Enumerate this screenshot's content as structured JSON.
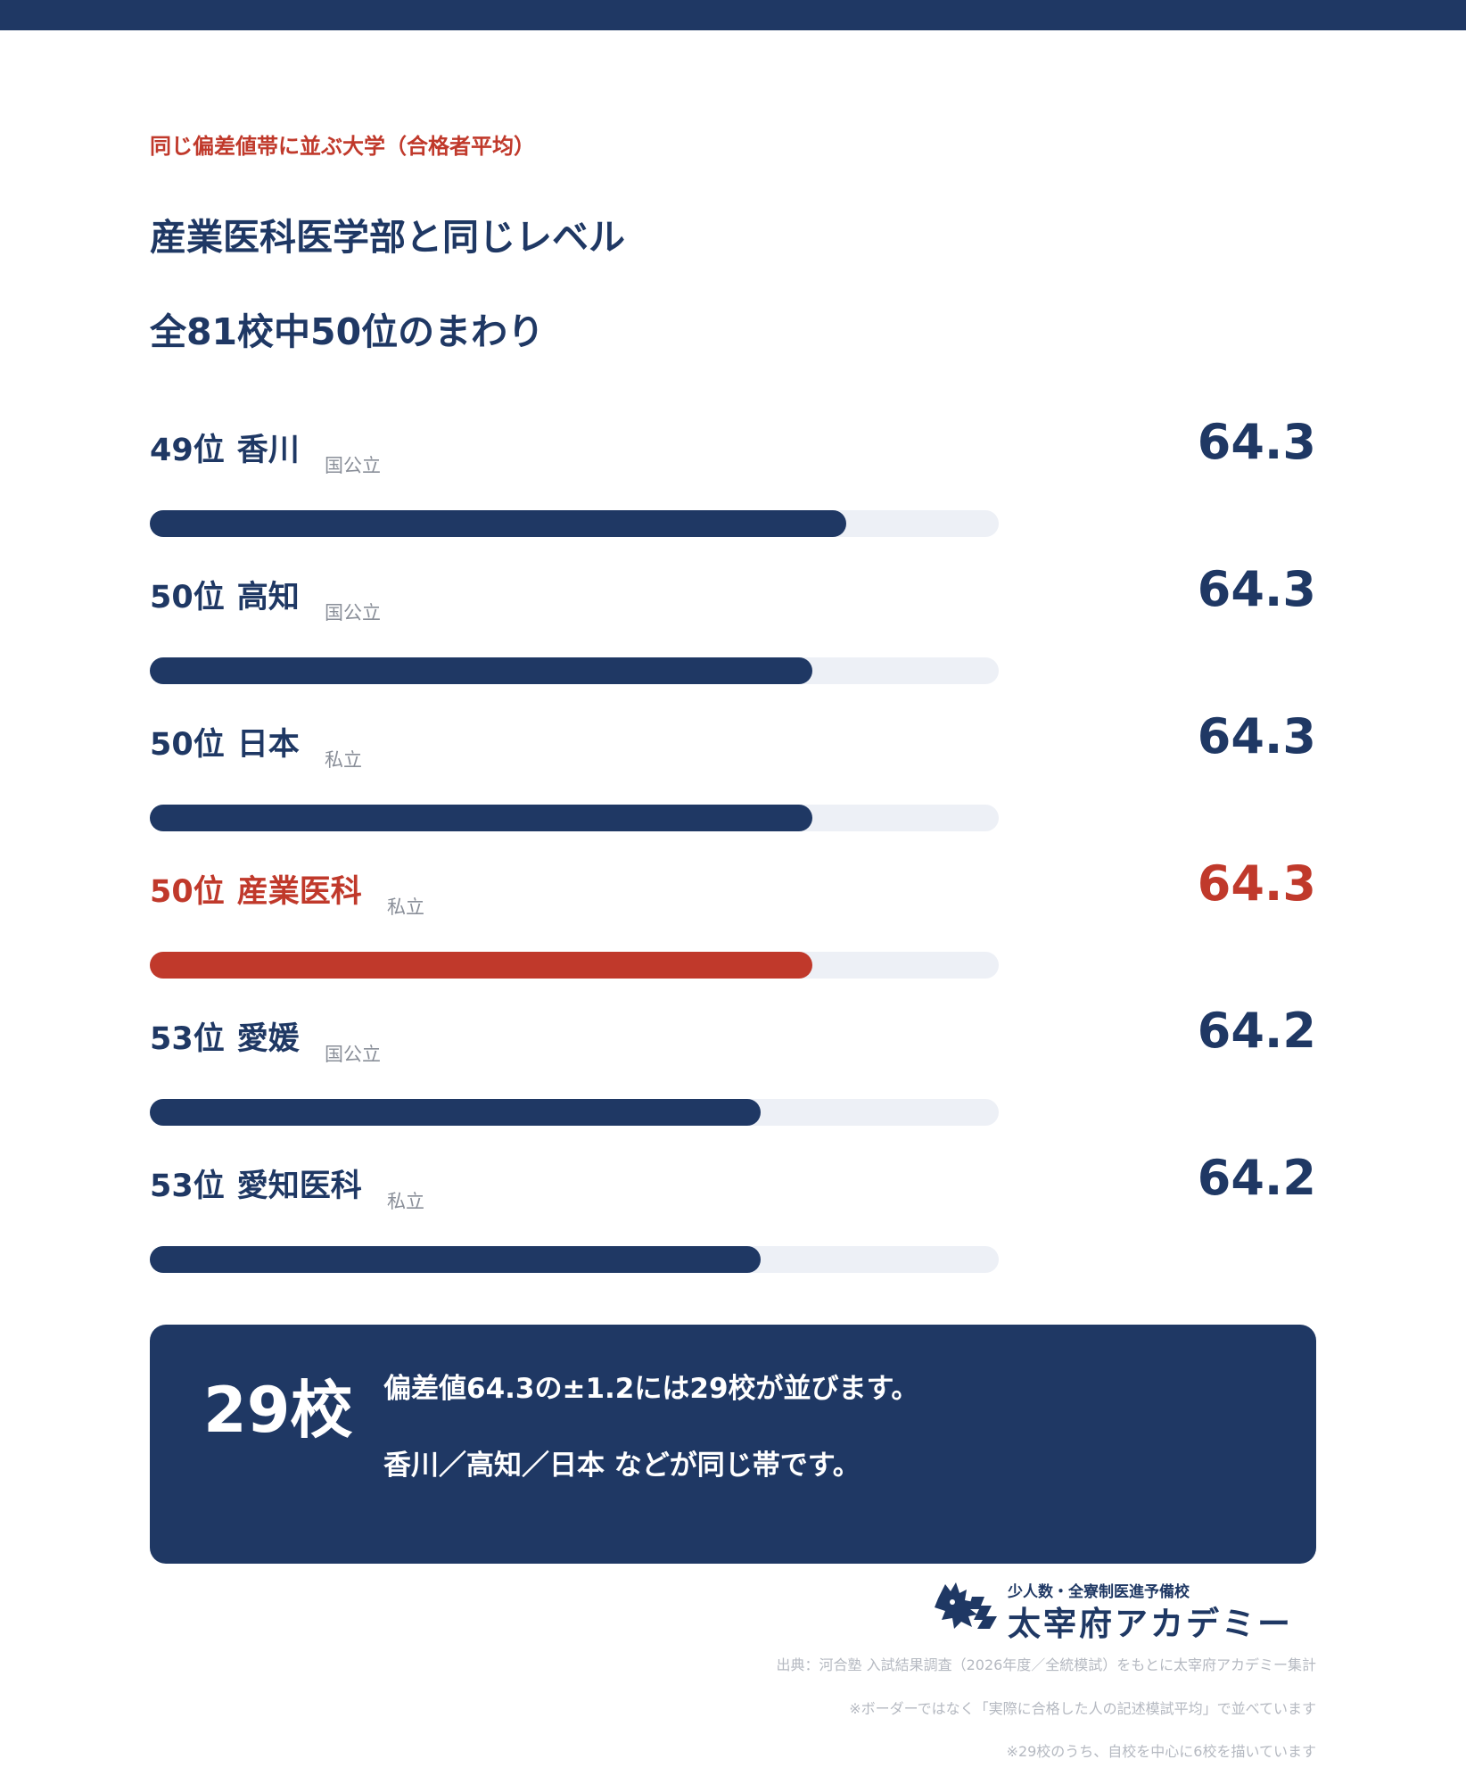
{
  "header": {
    "eyebrow": "同じ偏差値帯に並ぶ大学（合格者平均）",
    "title_line1": "産業医科医学部と同じレベル",
    "title_line2": "全81校中50位のまわり"
  },
  "colors": {
    "navy": "#1f3864",
    "highlight": "#c0392b",
    "track": "#edf0f6"
  },
  "chart_data": {
    "type": "bar",
    "orientation": "horizontal",
    "series": [
      {
        "rank": "49位",
        "name": "香川",
        "type": "国公立",
        "value": 64.3,
        "value_label": "64.3",
        "bar_fill": 0.82,
        "highlight": false
      },
      {
        "rank": "50位",
        "name": "高知",
        "type": "国公立",
        "value": 64.3,
        "value_label": "64.3",
        "bar_fill": 0.78,
        "highlight": false
      },
      {
        "rank": "50位",
        "name": "日本",
        "type": "私立",
        "value": 64.3,
        "value_label": "64.3",
        "bar_fill": 0.78,
        "highlight": false
      },
      {
        "rank": "50位",
        "name": "産業医科",
        "type": "私立",
        "value": 64.3,
        "value_label": "64.3",
        "bar_fill": 0.78,
        "highlight": true
      },
      {
        "rank": "53位",
        "name": "愛媛",
        "type": "国公立",
        "value": 64.2,
        "value_label": "64.2",
        "bar_fill": 0.72,
        "highlight": false
      },
      {
        "rank": "53位",
        "name": "愛知医科",
        "type": "私立",
        "value": 64.2,
        "value_label": "64.2",
        "bar_fill": 0.72,
        "highlight": false
      }
    ]
  },
  "summary": {
    "count": "29校",
    "line1": "偏差値64.3の±1.2には29校が並びます。",
    "line2": "香川／高知／日本 などが同じ帯です。"
  },
  "logo": {
    "subtitle": "少人数・全寮制医進予備校",
    "name": "太宰府アカデミー"
  },
  "notes": [
    "出典：河合塾 入試結果調査（2026年度／全統模試）をもとに太宰府アカデミー集計",
    "※ボーダーではなく「実際に合格した人の記述模試平均」で並べています",
    "※29校のうち、自校を中心に6校を描いています"
  ]
}
